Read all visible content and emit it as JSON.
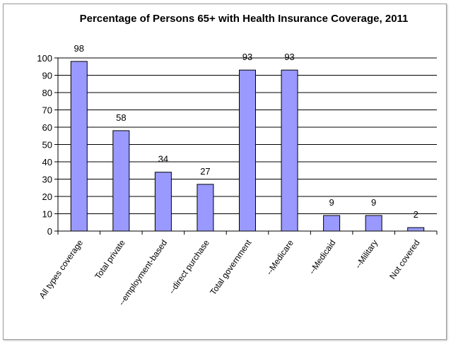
{
  "chart_data": {
    "type": "bar",
    "title": "Percentage of Persons 65+ with Health Insurance Coverage, 2011",
    "categories": [
      "All types coverage",
      "Total private",
      "--employment-based",
      "--direct purchase",
      "Total government",
      "--Medicare",
      "--Medicaid",
      "--Military",
      "Not covered"
    ],
    "values": [
      98,
      58,
      34,
      27,
      93,
      93,
      9,
      9,
      2
    ],
    "data_labels": [
      "98",
      "58",
      "34",
      "27",
      "93",
      "93",
      "9",
      "9",
      "2"
    ],
    "xlabel": "",
    "ylabel": "",
    "ylim": [
      0,
      100
    ],
    "yticks": [
      0,
      10,
      20,
      30,
      40,
      50,
      60,
      70,
      80,
      90,
      100
    ],
    "grid": true,
    "legend": "none",
    "colors": {
      "bar_fill": "#9999ff",
      "bar_stroke": "#000000",
      "grid": "#000000"
    }
  }
}
